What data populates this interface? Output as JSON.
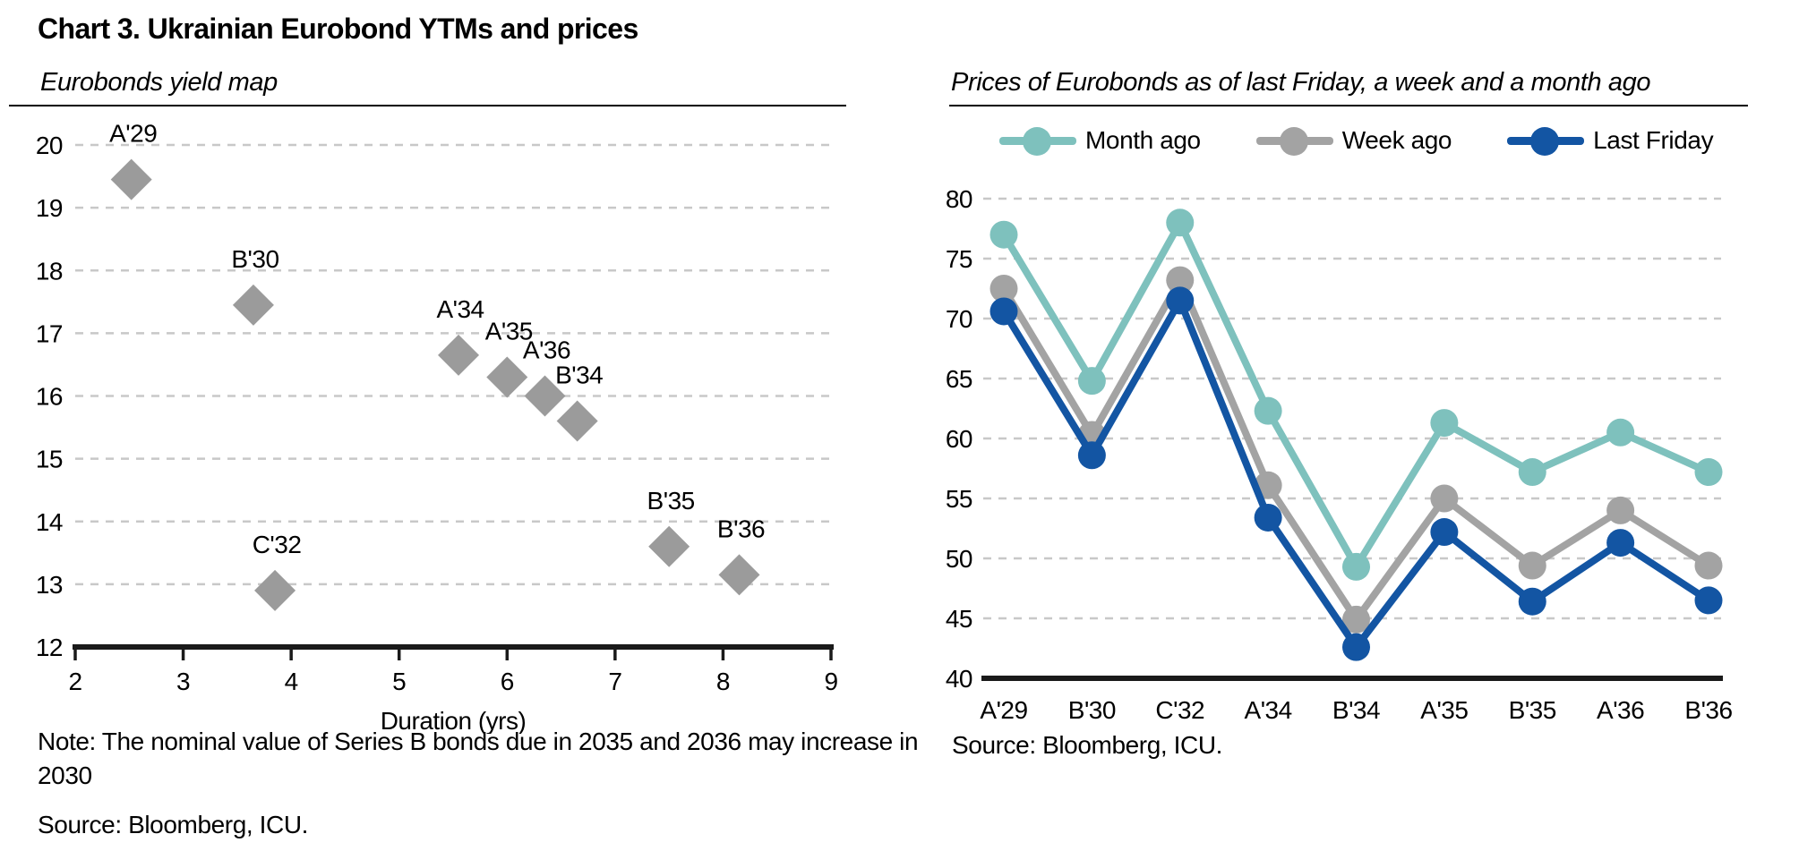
{
  "page": {
    "title": "Chart 3. Ukrainian Eurobond YTMs and prices"
  },
  "left_panel": {
    "subtitle": "Eurobonds yield map",
    "note": "Note: The nominal value of Series B bonds due in 2035 and 2036 may increase in 2030",
    "source": "Source: Bloomberg, ICU."
  },
  "right_panel": {
    "subtitle": "Prices of Eurobonds as of last Friday, a week and a month ago",
    "source": "Source: Bloomberg, ICU."
  },
  "colors": {
    "scatter_marker": "#9B9B9B",
    "month_ago": "#7EC1BD",
    "week_ago": "#A3A3A3",
    "last_friday": "#1355A3",
    "gridline": "#C8C8C8",
    "axis": "#1A1A1A"
  },
  "chart_data": [
    {
      "type": "scatter",
      "title": "Eurobonds yield map",
      "xlabel": "Duration (yrs)",
      "ylabel": "",
      "xlim": [
        2,
        9
      ],
      "ylim": [
        12,
        20
      ],
      "xticks": [
        2,
        3,
        4,
        5,
        6,
        7,
        8,
        9
      ],
      "yticks": [
        12,
        13,
        14,
        15,
        16,
        17,
        18,
        19,
        20
      ],
      "grid": "dashed-horizontal",
      "marker": "diamond",
      "points": [
        {
          "label": "A'29",
          "x": 2.52,
          "y": 19.45
        },
        {
          "label": "B'30",
          "x": 3.65,
          "y": 17.45
        },
        {
          "label": "C'32",
          "x": 3.85,
          "y": 12.9
        },
        {
          "label": "A'34",
          "x": 5.55,
          "y": 16.65
        },
        {
          "label": "A'35",
          "x": 6.0,
          "y": 16.3
        },
        {
          "label": "A'36",
          "x": 6.35,
          "y": 16.0
        },
        {
          "label": "B'34",
          "x": 6.65,
          "y": 15.6
        },
        {
          "label": "B'35",
          "x": 7.5,
          "y": 13.6
        },
        {
          "label": "B'36",
          "x": 8.15,
          "y": 13.15
        }
      ]
    },
    {
      "type": "line",
      "title": "Prices of Eurobonds as of last Friday, a week and a month ago",
      "categories": [
        "A'29",
        "B'30",
        "C'32",
        "A'34",
        "B'34",
        "A'35",
        "B'35",
        "A'36",
        "B'36"
      ],
      "ylim": [
        40,
        80
      ],
      "ytick_step": 5,
      "grid": "dashed-horizontal",
      "legend_position": "top",
      "series": [
        {
          "name": "Month ago",
          "color": "#7EC1BD",
          "values": [
            77,
            64.8,
            78,
            62.3,
            49.3,
            61.3,
            57.2,
            60.5,
            57.2
          ]
        },
        {
          "name": "Week ago",
          "color": "#A3A3A3",
          "values": [
            72.5,
            60.3,
            73.2,
            56.1,
            44.9,
            55,
            49.4,
            54,
            49.4
          ]
        },
        {
          "name": "Last Friday",
          "color": "#1355A3",
          "values": [
            70.6,
            58.6,
            71.5,
            53.4,
            42.6,
            52.2,
            46.4,
            51.3,
            46.5
          ]
        }
      ]
    }
  ]
}
